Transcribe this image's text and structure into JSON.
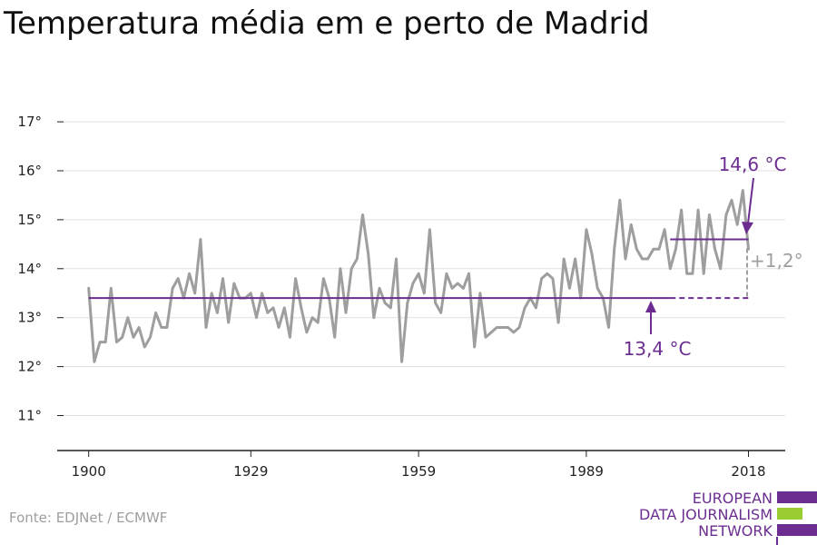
{
  "title": "Temperatura média em e perto de Madrid",
  "source": "Fonte: EDJNet / ECMWF",
  "logo": {
    "lines": [
      "EUROPEAN",
      "DATA JOURNALISM",
      "NETWORK"
    ],
    "colors": [
      "#6b2d90",
      "#9acd32",
      "#6b2d90"
    ]
  },
  "colors": {
    "series": "#9e9e9e",
    "accent": "#6b2d90",
    "grid": "#e0e0e0",
    "axis": "#222222",
    "delta": "#9e9e9e"
  },
  "chart_data": {
    "type": "line",
    "title": "Temperatura média em e perto de Madrid",
    "xlabel": "",
    "ylabel": "",
    "xlim": [
      1900,
      2019
    ],
    "ylim": [
      10.3,
      17.3
    ],
    "y_ticks": [
      11,
      12,
      13,
      14,
      15,
      16,
      17
    ],
    "y_tick_labels": [
      "11°",
      "12°",
      "13°",
      "14°",
      "15°",
      "16°",
      "17°"
    ],
    "x_ticks": [
      1900,
      1929,
      1959,
      1989,
      2018
    ],
    "x_tick_labels": [
      "1900",
      "1929",
      "1959",
      "1989",
      "2018"
    ],
    "grid": "horizontal",
    "series": [
      {
        "x": [
          1900,
          1901,
          1902,
          1903,
          1904,
          1905,
          1906,
          1907,
          1908,
          1909,
          1910,
          1911,
          1912,
          1913,
          1914,
          1915,
          1916,
          1917,
          1918,
          1919,
          1920,
          1921,
          1922,
          1923,
          1924,
          1925,
          1926,
          1927,
          1928,
          1929,
          1930,
          1931,
          1932,
          1933,
          1934,
          1935,
          1936,
          1937,
          1938,
          1939,
          1940,
          1941,
          1942,
          1943,
          1944,
          1945,
          1946,
          1947,
          1948,
          1949,
          1950,
          1951,
          1952,
          1953,
          1954,
          1955,
          1956,
          1957,
          1958,
          1959,
          1960,
          1961,
          1962,
          1963,
          1964,
          1965,
          1966,
          1967,
          1968,
          1969,
          1970,
          1971,
          1972,
          1973,
          1974,
          1975,
          1976,
          1977,
          1978,
          1979,
          1980,
          1981,
          1982,
          1983,
          1984,
          1985,
          1986,
          1987,
          1988,
          1989,
          1990,
          1991,
          1992,
          1993,
          1994,
          1995,
          1996,
          1997,
          1998,
          1999,
          2000,
          2001,
          2002,
          2003,
          2004,
          2005,
          2006,
          2007,
          2008,
          2009,
          2010,
          2011,
          2012,
          2013,
          2014,
          2015,
          2016,
          2017,
          2018
        ],
        "values": [
          13.6,
          12.1,
          12.5,
          12.5,
          13.6,
          12.5,
          12.6,
          13.0,
          12.6,
          12.8,
          12.4,
          12.6,
          13.1,
          12.8,
          12.8,
          13.6,
          13.8,
          13.4,
          13.9,
          13.5,
          14.6,
          12.8,
          13.5,
          13.1,
          13.8,
          12.9,
          13.7,
          13.4,
          13.4,
          13.5,
          13.0,
          13.5,
          13.1,
          13.2,
          12.8,
          13.2,
          12.6,
          13.8,
          13.2,
          12.7,
          13.0,
          12.9,
          13.8,
          13.4,
          12.6,
          14.0,
          13.1,
          14.0,
          14.2,
          15.1,
          14.3,
          13.0,
          13.6,
          13.3,
          13.2,
          14.2,
          12.1,
          13.3,
          13.7,
          13.9,
          13.5,
          14.8,
          13.3,
          13.1,
          13.9,
          13.6,
          13.7,
          13.6,
          13.9,
          12.4,
          13.5,
          12.6,
          12.7,
          12.8,
          12.8,
          12.8,
          12.7,
          12.8,
          13.2,
          13.4,
          13.2,
          13.8,
          13.9,
          13.8,
          12.9,
          14.2,
          13.6,
          14.2,
          13.4,
          14.8,
          14.3,
          13.6,
          13.4,
          12.8,
          14.4,
          15.4,
          14.2,
          14.9,
          14.4,
          14.2,
          14.2,
          14.4,
          14.4,
          14.8,
          14.0,
          14.4,
          15.2,
          13.9,
          13.9,
          15.2,
          13.9,
          15.1,
          14.4,
          14.0,
          15.1,
          15.4,
          14.9,
          15.6,
          14.4
        ]
      }
    ],
    "baseline": {
      "value": 13.4,
      "from": 1900,
      "to": 2004,
      "dashed_to": 2018,
      "label": "13,4 °C"
    },
    "recent_avg": {
      "value": 14.6,
      "from": 2004,
      "to": 2018,
      "label": "14,6 °C"
    },
    "delta_label": "+1,2°"
  }
}
